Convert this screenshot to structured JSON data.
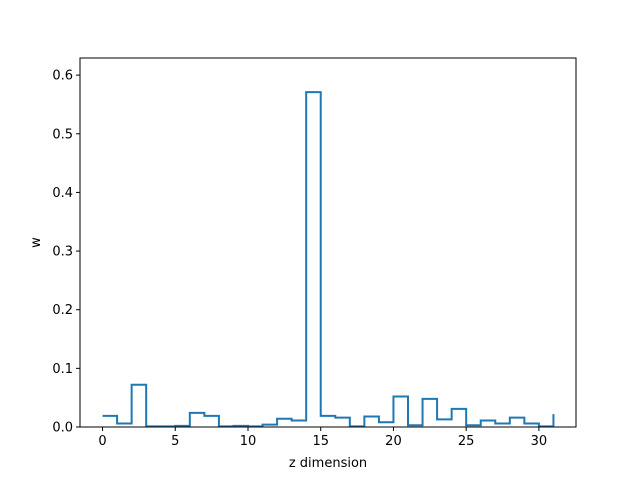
{
  "chart_data": {
    "type": "step",
    "title": "",
    "xlabel": "z dimension",
    "ylabel": "w",
    "xlim": [
      -1.55,
      32.55
    ],
    "ylim": [
      0,
      0.6292
    ],
    "xticks": [
      0,
      5,
      10,
      15,
      20,
      25,
      30
    ],
    "yticks": [
      0.0,
      0.1,
      0.2,
      0.3,
      0.4,
      0.5,
      0.6
    ],
    "ytick_labels": [
      "0.0",
      "0.1",
      "0.2",
      "0.3",
      "0.4",
      "0.5",
      "0.6"
    ],
    "grid": false,
    "line_color": "#1f77b4",
    "step_where": "post",
    "x": [
      0,
      1,
      2,
      3,
      4,
      5,
      6,
      7,
      8,
      9,
      10,
      11,
      12,
      13,
      14,
      15,
      16,
      17,
      18,
      19,
      20,
      21,
      22,
      23,
      24,
      25,
      26,
      27,
      28,
      29,
      30,
      31
    ],
    "values": [
      0.019,
      0.006,
      0.072,
      0.001,
      0.001,
      0.002,
      0.024,
      0.019,
      0.001,
      0.002,
      0.001,
      0.004,
      0.014,
      0.011,
      0.571,
      0.019,
      0.016,
      0.001,
      0.018,
      0.008,
      0.052,
      0.003,
      0.048,
      0.013,
      0.031,
      0.003,
      0.011,
      0.006,
      0.016,
      0.006,
      0.001,
      0.022
    ]
  }
}
